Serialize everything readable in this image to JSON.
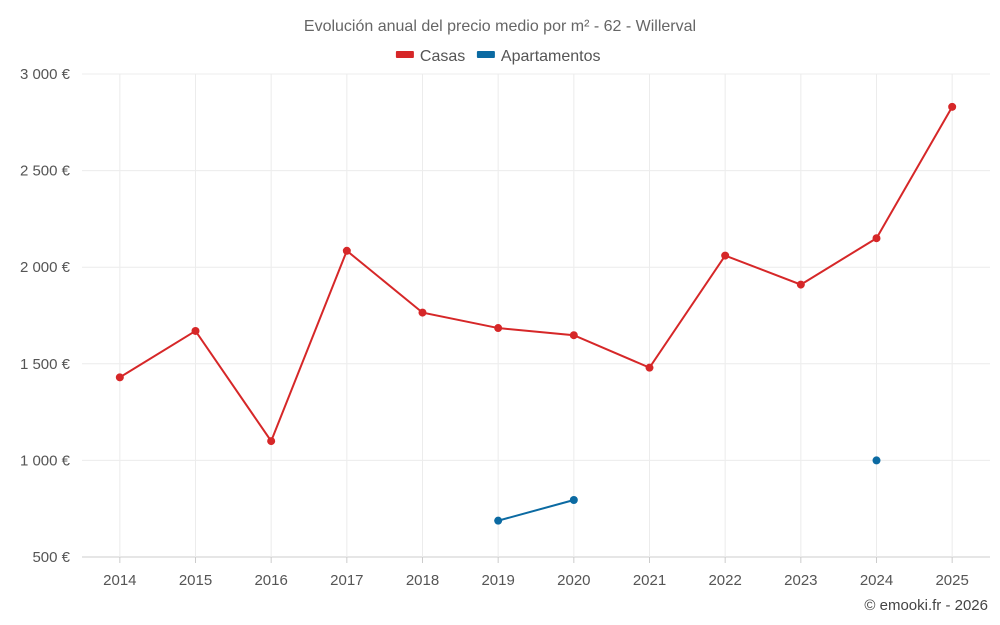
{
  "chart_data": {
    "type": "line",
    "title": "Evolución anual del precio medio por m² - 62 - Willerval",
    "categories": [
      "2014",
      "2015",
      "2016",
      "2017",
      "2018",
      "2019",
      "2020",
      "2021",
      "2022",
      "2023",
      "2024",
      "2025"
    ],
    "series": [
      {
        "name": "Casas",
        "color": "#d62728",
        "values": [
          1430,
          1670,
          1100,
          2085,
          1765,
          1685,
          1648,
          1480,
          2060,
          1910,
          2150,
          2830
        ]
      },
      {
        "name": "Apartamentos",
        "color": "#0b6aa2",
        "values": [
          null,
          null,
          null,
          null,
          null,
          688,
          795,
          null,
          null,
          null,
          1000,
          null
        ]
      }
    ],
    "y_ticks": [
      "500 €",
      "1 000 €",
      "1 500 €",
      "2 000 €",
      "2 500 €",
      "3 000 €"
    ],
    "ylim": [
      500,
      3000
    ],
    "grid": true,
    "legend_position": "top-center",
    "credit": "© emooki.fr - 2026"
  }
}
